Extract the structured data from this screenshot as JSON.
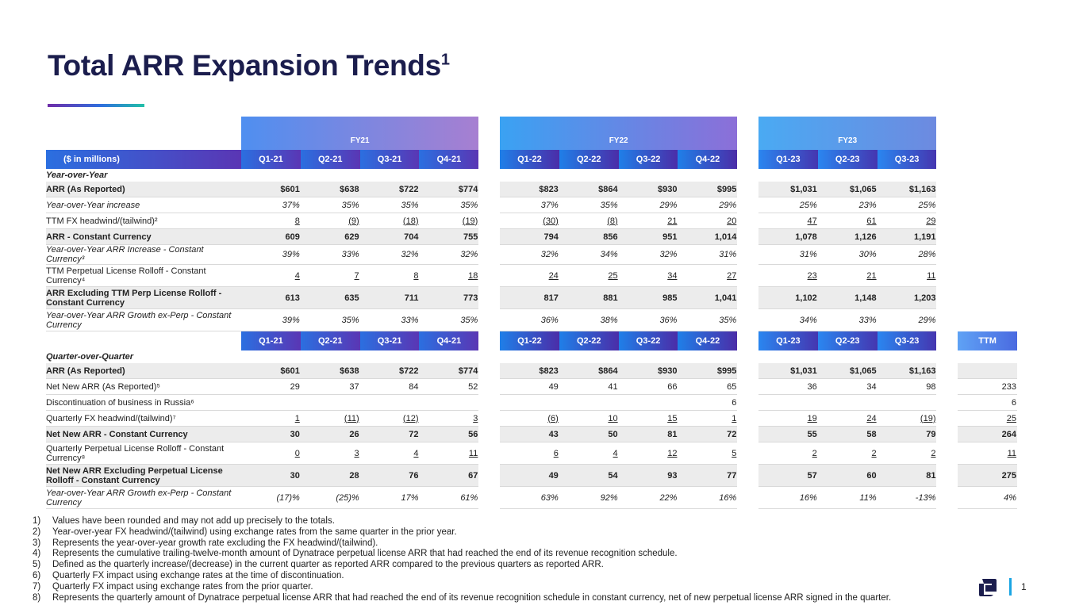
{
  "title": "Total ARR Expansion Trends",
  "title_sup": "1",
  "fiscal_years": [
    "FY21",
    "FY22",
    "FY23"
  ],
  "header_label": "($ in millions)",
  "ttm_label": "TTM",
  "quarters": [
    "Q1-21",
    "Q2-21",
    "Q3-21",
    "Q4-21",
    "Q1-22",
    "Q2-22",
    "Q3-22",
    "Q4-22",
    "Q1-23",
    "Q2-23",
    "Q3-23"
  ],
  "yoy": {
    "section_label": "Year-over-Year",
    "rows": [
      {
        "label": "ARR (As Reported)",
        "values": [
          "$601",
          "$638",
          "$722",
          "$774",
          "$823",
          "$864",
          "$930",
          "$995",
          "$1,031",
          "$1,065",
          "$1,163"
        ]
      },
      {
        "label": "Year-over-Year increase",
        "values": [
          "37%",
          "35%",
          "35%",
          "35%",
          "37%",
          "35%",
          "29%",
          "29%",
          "25%",
          "23%",
          "25%"
        ]
      },
      {
        "label": "TTM FX headwind/(tailwind)²",
        "values": [
          "8",
          "(9)",
          "(18)",
          "(19)",
          "(30)",
          "(8)",
          "21",
          "20",
          "47",
          "61",
          "29"
        ]
      },
      {
        "label": "ARR - Constant Currency",
        "values": [
          "609",
          "629",
          "704",
          "755",
          "794",
          "856",
          "951",
          "1,014",
          "1,078",
          "1,126",
          "1,191"
        ]
      },
      {
        "label": "Year-over-Year ARR Increase - Constant Currency³",
        "values": [
          "39%",
          "33%",
          "32%",
          "32%",
          "32%",
          "34%",
          "32%",
          "31%",
          "31%",
          "30%",
          "28%"
        ]
      },
      {
        "label": "TTM Perpetual License Rolloff - Constant Currency⁴",
        "values": [
          "4",
          "7",
          "8",
          "18",
          "24",
          "25",
          "34",
          "27",
          "23",
          "21",
          "11"
        ]
      },
      {
        "label": "ARR Excluding TTM Perp License Rolloff - Constant Currency",
        "values": [
          "613",
          "635",
          "711",
          "773",
          "817",
          "881",
          "985",
          "1,041",
          "1,102",
          "1,148",
          "1,203"
        ]
      },
      {
        "label": "Year-over-Year ARR Growth ex-Perp - Constant Currency",
        "values": [
          "39%",
          "35%",
          "33%",
          "35%",
          "36%",
          "38%",
          "36%",
          "35%",
          "34%",
          "33%",
          "29%"
        ]
      }
    ]
  },
  "qoq": {
    "section_label": "Quarter-over-Quarter",
    "rows": [
      {
        "label": "ARR (As Reported)",
        "values": [
          "$601",
          "$638",
          "$722",
          "$774",
          "$823",
          "$864",
          "$930",
          "$995",
          "$1,031",
          "$1,065",
          "$1,163"
        ],
        "ttm": ""
      },
      {
        "label": "Net New ARR (As Reported)⁵",
        "values": [
          "29",
          "37",
          "84",
          "52",
          "49",
          "41",
          "66",
          "65",
          "36",
          "34",
          "98"
        ],
        "ttm": "233"
      },
      {
        "label": "Discontinuation of business in Russia⁶",
        "values": [
          "",
          "",
          "",
          "",
          "",
          "",
          "",
          "6",
          "",
          "",
          ""
        ],
        "ttm": "6"
      },
      {
        "label": "Quarterly FX headwind/(tailwind)⁷",
        "values": [
          "1",
          "(11)",
          "(12)",
          "3",
          "(6)",
          "10",
          "15",
          "1",
          "19",
          "24",
          "(19)"
        ],
        "ttm": "25"
      },
      {
        "label": "Net New ARR - Constant Currency",
        "values": [
          "30",
          "26",
          "72",
          "56",
          "43",
          "50",
          "81",
          "72",
          "55",
          "58",
          "79"
        ],
        "ttm": "264"
      },
      {
        "label": "Quarterly Perpetual License Rolloff - Constant Currency⁸",
        "values": [
          "0",
          "3",
          "4",
          "11",
          "6",
          "4",
          "12",
          "5",
          "2",
          "2",
          "2"
        ],
        "ttm": "11"
      },
      {
        "label": "Net New ARR Excluding Perpetual License Rolloff - Constant Currency",
        "values": [
          "30",
          "28",
          "76",
          "67",
          "49",
          "54",
          "93",
          "77",
          "57",
          "60",
          "81"
        ],
        "ttm": "275"
      },
      {
        "label": "Year-over-Year ARR Growth ex-Perp - Constant Currency",
        "values": [
          "(17)%",
          "(25)%",
          "17%",
          "61%",
          "63%",
          "92%",
          "22%",
          "16%",
          "16%",
          "11%",
          "-13%"
        ],
        "ttm": "4%"
      }
    ]
  },
  "footnotes": [
    {
      "num": "1)",
      "text": "Values have been rounded and may not add up precisely to the totals."
    },
    {
      "num": "2)",
      "text": "Year-over-year FX headwind/(tailwind) using exchange rates from the same quarter in the prior year."
    },
    {
      "num": "3)",
      "text": "Represents the year-over-year growth rate excluding the FX headwind/(tailwind)."
    },
    {
      "num": "4)",
      "text": "Represents the cumulative trailing-twelve-month amount of Dynatrace perpetual license ARR that had reached the end of its revenue recognition schedule."
    },
    {
      "num": "5)",
      "text": "Defined as the quarterly increase/(decrease) in the current quarter as reported ARR compared to the previous quarters as reported ARR."
    },
    {
      "num": "6)",
      "text": "Quarterly FX impact using exchange rates at the time of discontinuation."
    },
    {
      "num": "7)",
      "text": "Quarterly FX impact using exchange rates from the prior quarter."
    },
    {
      "num": "8)",
      "text": "Represents the quarterly amount of Dynatrace perpetual license ARR that had reached the end of its revenue recognition schedule in constant currency, net of new perpetual license ARR signed in the quarter."
    }
  ],
  "page_number": "1"
}
